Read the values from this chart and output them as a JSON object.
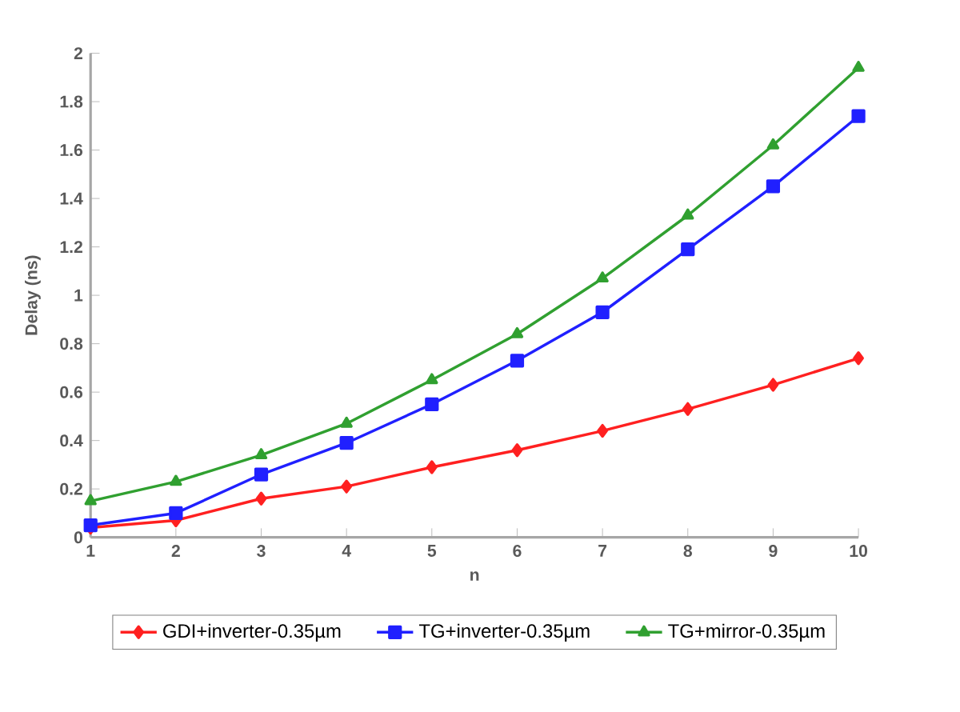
{
  "chart_data": {
    "type": "line",
    "xlabel": "n",
    "ylabel": "Delay (ns)",
    "x": [
      1,
      2,
      3,
      4,
      5,
      6,
      7,
      8,
      9,
      10
    ],
    "series": [
      {
        "name": "GDI+inverter-0.35µm",
        "color": "#ff2020",
        "marker": "diamond",
        "values": [
          0.04,
          0.07,
          0.16,
          0.21,
          0.29,
          0.36,
          0.44,
          0.53,
          0.63,
          0.74
        ]
      },
      {
        "name": "TG+inverter-0.35µm",
        "color": "#2020ff",
        "marker": "square",
        "values": [
          0.05,
          0.1,
          0.26,
          0.39,
          0.55,
          0.73,
          0.93,
          1.19,
          1.45,
          1.74
        ]
      },
      {
        "name": "TG+mirror-0.35µm",
        "color": "#30a030",
        "marker": "triangle",
        "values": [
          0.15,
          0.23,
          0.34,
          0.47,
          0.65,
          0.84,
          1.07,
          1.33,
          1.62,
          1.94
        ]
      }
    ],
    "xlim": [
      1,
      10
    ],
    "xticks": [
      1,
      2,
      3,
      4,
      5,
      6,
      7,
      8,
      9,
      10
    ],
    "ylim": [
      0,
      2
    ],
    "yticks": [
      0,
      0.2,
      0.4,
      0.6,
      0.8,
      1,
      1.2,
      1.4,
      1.6,
      1.8,
      2
    ],
    "grid": false,
    "legend": "bottom",
    "line_style": "solid"
  }
}
